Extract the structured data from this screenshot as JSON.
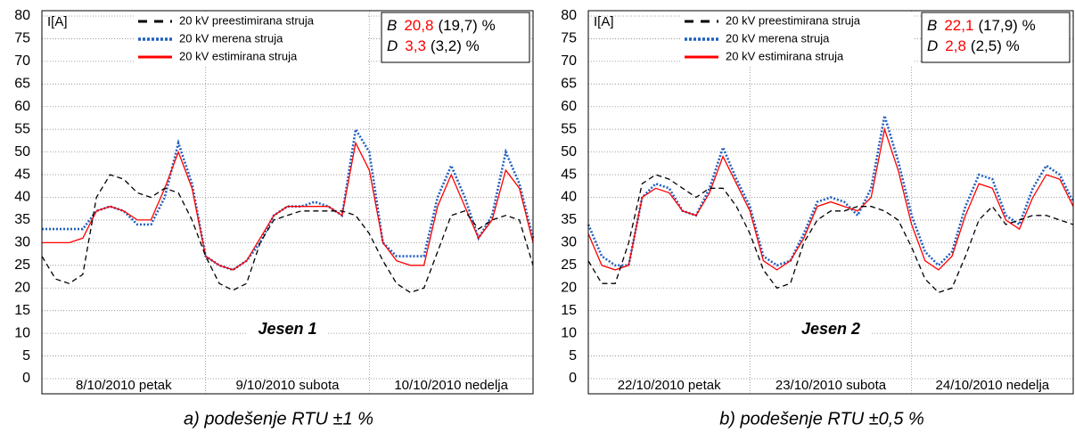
{
  "chart_data": [
    {
      "type": "line",
      "ylabel": "I[A]",
      "annotation": "Jesen 1",
      "caption": "a) podešenje RTU ±1 %",
      "stats": [
        {
          "label": "B",
          "value": "20,8",
          "base": "(19,7) %"
        },
        {
          "label": "D",
          "value": "3,3",
          "base": "(3,2) %"
        }
      ],
      "x": [
        0,
        2,
        4,
        6,
        8,
        10,
        12,
        14,
        16,
        18,
        20,
        22,
        24,
        26,
        28,
        30,
        32,
        34,
        36,
        38,
        40,
        42,
        44,
        46,
        48,
        50,
        52,
        54,
        56,
        58,
        60,
        62,
        64,
        66,
        68,
        70,
        72
      ],
      "xlim": [
        0,
        72
      ],
      "xticks": [
        {
          "value": 12,
          "label": "8/10/2010 petak"
        },
        {
          "value": 36,
          "label": "9/10/2010 subota"
        },
        {
          "value": 60,
          "label": "10/10/2010 nedelja"
        }
      ],
      "xgrid": [
        24,
        48
      ],
      "ylim": [
        0,
        80
      ],
      "yticks": [
        0,
        5,
        10,
        15,
        20,
        25,
        30,
        35,
        40,
        45,
        50,
        55,
        60,
        65,
        70,
        75,
        80
      ],
      "grid": true,
      "series": [
        {
          "name": "20 kV preestimirana struja",
          "color": "#000000",
          "style": "dashed",
          "values": [
            27,
            22,
            21,
            23,
            40,
            45,
            44,
            41,
            40,
            42,
            41,
            35,
            27,
            21,
            19.5,
            21,
            30,
            35,
            36,
            37,
            37,
            37,
            37,
            36,
            32,
            26,
            21,
            19,
            20,
            28,
            36,
            37,
            33,
            35,
            36,
            35,
            25
          ]
        },
        {
          "name": "20 kV merena struja",
          "color": "#1f5fbf",
          "style": "dotted",
          "values": [
            33,
            33,
            33,
            33,
            37,
            38,
            37,
            34,
            34,
            40,
            52,
            43,
            27,
            25,
            24,
            26,
            30,
            36,
            38,
            38,
            39,
            38,
            36,
            55,
            50,
            30,
            27,
            27,
            27,
            40,
            47,
            40,
            31,
            36,
            50,
            43,
            31
          ]
        },
        {
          "name": "20 kV estimirana struja",
          "color": "#ff0000",
          "style": "solid",
          "values": [
            30,
            30,
            30,
            31,
            37,
            38,
            37,
            35,
            35,
            42,
            50,
            42,
            27,
            25,
            24,
            26,
            31,
            36,
            38,
            38,
            38,
            38,
            36,
            52,
            46,
            30,
            26,
            25,
            25,
            38,
            45,
            38,
            31,
            35,
            46,
            42,
            30
          ]
        }
      ]
    },
    {
      "type": "line",
      "ylabel": "I[A]",
      "annotation": "Jesen 2",
      "caption": "b) podešenje RTU ±0,5 %",
      "stats": [
        {
          "label": "B",
          "value": "22,1",
          "base": "(17,9) %"
        },
        {
          "label": "D",
          "value": "2,8",
          "base": "(2,5) %"
        }
      ],
      "x": [
        0,
        2,
        4,
        6,
        8,
        10,
        12,
        14,
        16,
        18,
        20,
        22,
        24,
        26,
        28,
        30,
        32,
        34,
        36,
        38,
        40,
        42,
        44,
        46,
        48,
        50,
        52,
        54,
        56,
        58,
        60,
        62,
        64,
        66,
        68,
        70,
        72
      ],
      "xlim": [
        0,
        72
      ],
      "xticks": [
        {
          "value": 12,
          "label": "22/10/2010 petak"
        },
        {
          "value": 36,
          "label": "23/10/2010 subota"
        },
        {
          "value": 60,
          "label": "24/10/2010 nedelja"
        }
      ],
      "xgrid": [
        24,
        48
      ],
      "ylim": [
        0,
        80
      ],
      "yticks": [
        0,
        5,
        10,
        15,
        20,
        25,
        30,
        35,
        40,
        45,
        50,
        55,
        60,
        65,
        70,
        75,
        80
      ],
      "grid": true,
      "series": [
        {
          "name": "20 kV preestimirana struja",
          "color": "#000000",
          "style": "dashed",
          "values": [
            26,
            21,
            21,
            30,
            43,
            45,
            44,
            42,
            40,
            42,
            42,
            38,
            32,
            24,
            20,
            21,
            30,
            35,
            37,
            37,
            38,
            38,
            37,
            35,
            29,
            22,
            19,
            20,
            27,
            35,
            38,
            34,
            35,
            36,
            36,
            35,
            34
          ]
        },
        {
          "name": "20 kV merena struja",
          "color": "#1f5fbf",
          "style": "dotted",
          "values": [
            34,
            27,
            25,
            25,
            40,
            43,
            42,
            37,
            36,
            42,
            51,
            44,
            38,
            27,
            25,
            26,
            32,
            39,
            40,
            39,
            36,
            42,
            58,
            48,
            36,
            28,
            25,
            28,
            38,
            45,
            44,
            36,
            34,
            42,
            47,
            45,
            39
          ]
        },
        {
          "name": "20 kV estimirana struja",
          "color": "#ff0000",
          "style": "solid",
          "values": [
            32,
            25,
            24,
            25,
            40,
            42,
            41,
            37,
            36,
            41,
            49,
            43,
            37,
            26,
            24,
            26,
            31,
            38,
            39,
            38,
            37,
            40,
            55,
            46,
            34,
            26,
            24,
            27,
            36,
            43,
            42,
            35,
            33,
            40,
            45,
            44,
            38
          ]
        }
      ]
    }
  ]
}
